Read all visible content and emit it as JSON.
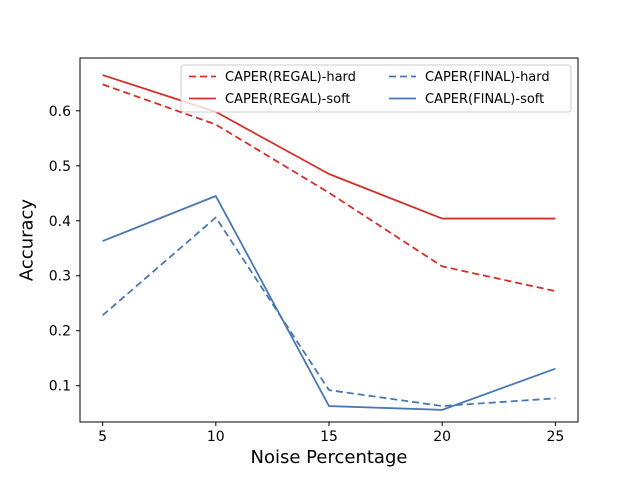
{
  "chart_data": {
    "type": "line",
    "x": [
      5,
      10,
      15,
      20,
      25
    ],
    "series": [
      {
        "name": "CAPER(REGAL)-hard",
        "color": "#d62f28",
        "line_style": "dashed",
        "values": [
          0.648,
          0.575,
          0.451,
          0.317,
          0.272
        ]
      },
      {
        "name": "CAPER(REGAL)-soft",
        "color": "#d62f28",
        "line_style": "solid",
        "values": [
          0.665,
          0.598,
          0.485,
          0.404,
          0.404
        ]
      },
      {
        "name": "CAPER(FINAL)-hard",
        "color": "#4878b4",
        "line_style": "dashed",
        "values": [
          0.228,
          0.406,
          0.092,
          0.063,
          0.077
        ]
      },
      {
        "name": "CAPER(FINAL)-soft",
        "color": "#4878b4",
        "line_style": "solid",
        "values": [
          0.363,
          0.445,
          0.063,
          0.056,
          0.131
        ]
      }
    ],
    "title": "",
    "xlabel": "Noise Percentage",
    "ylabel": "Accuracy",
    "xticks": [
      5,
      10,
      15,
      20,
      25
    ],
    "ytick_labels": [
      "0.1",
      "0.2",
      "0.3",
      "0.4",
      "0.5",
      "0.6"
    ],
    "yticks": [
      0.1,
      0.2,
      0.3,
      0.4,
      0.5,
      0.6
    ],
    "xlim": [
      4,
      26
    ],
    "ylim": [
      0.034,
      0.696
    ],
    "grid": false,
    "legend": {
      "position": "upper center",
      "columns": 2,
      "entries": [
        "CAPER(REGAL)-hard",
        "CAPER(REGAL)-soft",
        "CAPER(FINAL)-hard",
        "CAPER(FINAL)-soft"
      ],
      "border_color": "#cccccc",
      "background": "rgba(255,255,255,0.8)"
    },
    "axis_color": "#000000",
    "background": "#ffffff"
  }
}
